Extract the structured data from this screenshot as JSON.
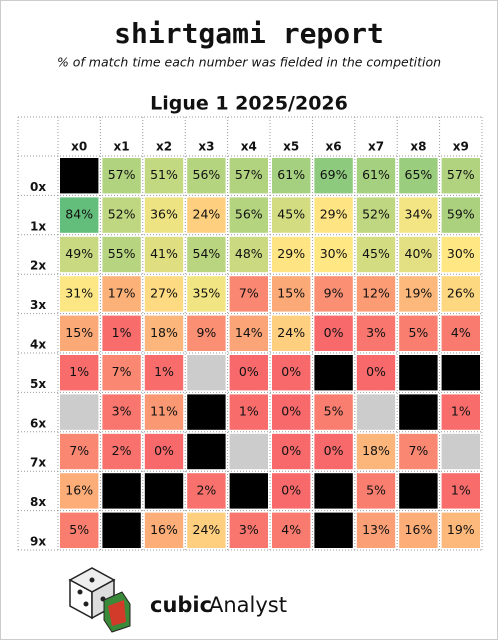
{
  "chart_data": {
    "type": "heatmap",
    "title": "shirtgami report",
    "subtitle": "% of match time each number was fielded in the competition",
    "heading": "Ligue 1 2025/2026",
    "x_categories": [
      "x0",
      "x1",
      "x2",
      "x3",
      "x4",
      "x5",
      "x6",
      "x7",
      "x8",
      "x9"
    ],
    "y_categories": [
      "0x",
      "1x",
      "2x",
      "3x",
      "4x",
      "5x",
      "6x",
      "7x",
      "8x",
      "9x"
    ],
    "values": [
      [
        null,
        57,
        51,
        56,
        57,
        61,
        69,
        61,
        65,
        57
      ],
      [
        84,
        52,
        36,
        24,
        56,
        45,
        29,
        52,
        34,
        59
      ],
      [
        49,
        55,
        41,
        54,
        48,
        29,
        30,
        45,
        40,
        30
      ],
      [
        31,
        17,
        27,
        35,
        7,
        15,
        9,
        12,
        19,
        26
      ],
      [
        15,
        1,
        18,
        9,
        14,
        24,
        0,
        3,
        5,
        4
      ],
      [
        1,
        7,
        1,
        null,
        0,
        0,
        null,
        0,
        null,
        null
      ],
      [
        null,
        3,
        11,
        null,
        1,
        0,
        5,
        null,
        null,
        1
      ],
      [
        7,
        2,
        0,
        null,
        null,
        0,
        0,
        18,
        7,
        null
      ],
      [
        16,
        null,
        null,
        2,
        null,
        0,
        null,
        5,
        null,
        1
      ],
      [
        5,
        null,
        16,
        24,
        3,
        4,
        null,
        13,
        16,
        19
      ]
    ],
    "value_labels": [
      [
        null,
        "57%",
        "51%",
        "56%",
        "57%",
        "61%",
        "69%",
        "61%",
        "65%",
        "57%"
      ],
      [
        "84%",
        "52%",
        "36%",
        "24%",
        "56%",
        "45%",
        "29%",
        "52%",
        "34%",
        "59%"
      ],
      [
        "49%",
        "55%",
        "41%",
        "54%",
        "48%",
        "29%",
        "30%",
        "45%",
        "40%",
        "30%"
      ],
      [
        "31%",
        "17%",
        "27%",
        "35%",
        "7%",
        "15%",
        "9%",
        "12%",
        "19%",
        "26%"
      ],
      [
        "15%",
        "1%",
        "18%",
        "9%",
        "14%",
        "24%",
        "0%",
        "3%",
        "5%",
        "4%"
      ],
      [
        "1%",
        "7%",
        "1%",
        null,
        "0%",
        "0%",
        null,
        "0%",
        null,
        null
      ],
      [
        null,
        "3%",
        "11%",
        null,
        "1%",
        "0%",
        "5%",
        null,
        null,
        "1%"
      ],
      [
        "7%",
        "2%",
        "0%",
        null,
        null,
        "0%",
        "0%",
        "18%",
        "7%",
        null
      ],
      [
        "16%",
        null,
        null,
        "2%",
        null,
        "0%",
        null,
        "5%",
        null,
        "1%"
      ],
      [
        "5%",
        null,
        "16%",
        "24%",
        "3%",
        "4%",
        null,
        "13%",
        "16%",
        "19%"
      ]
    ],
    "unused_cells": [
      [
        5,
        3
      ],
      [
        6,
        0
      ],
      [
        6,
        7
      ],
      [
        7,
        4
      ],
      [
        7,
        9
      ]
    ],
    "color_scale": [
      "#f8696b",
      "#ffe884",
      "#63be7b"
    ],
    "color_mid": 30,
    "missing_color": "#000000",
    "unused_color": "#cccccc"
  },
  "footer": {
    "logo_bold": "cubic",
    "logo_rest": "Analyst"
  }
}
